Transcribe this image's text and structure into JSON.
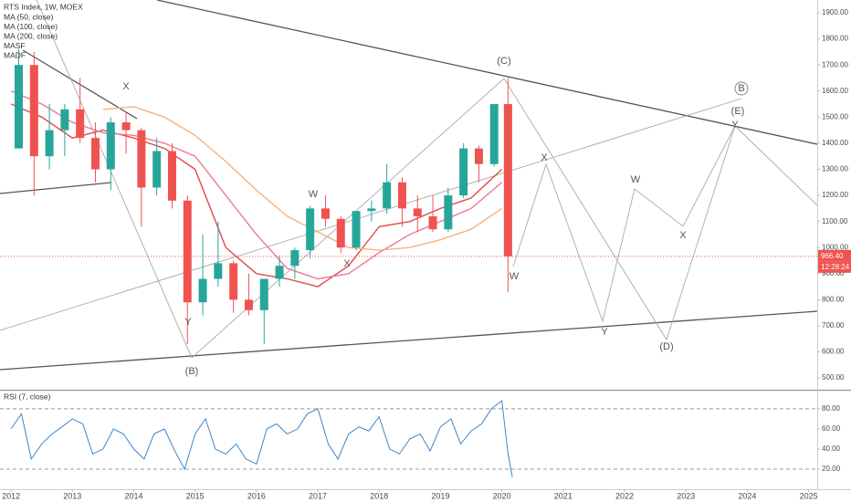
{
  "chart_data": [
    {
      "type": "candlestick",
      "title": "RTS Index, 1W, MOEX",
      "x": [
        2012.125,
        2012.375,
        2012.625,
        2012.875,
        2013.125,
        2013.375,
        2013.625,
        2013.875,
        2014.125,
        2014.375,
        2014.625,
        2014.875,
        2015.125,
        2015.375,
        2015.625,
        2015.875,
        2016.125,
        2016.375,
        2016.625,
        2016.875,
        2017.125,
        2017.375,
        2017.625,
        2017.875,
        2018.125,
        2018.375,
        2018.625,
        2018.875,
        2019.125,
        2019.375,
        2019.625,
        2019.875,
        2020.1
      ],
      "open": [
        1380,
        1700,
        1350,
        1450,
        1530,
        1420,
        1300,
        1480,
        1450,
        1230,
        1370,
        1180,
        790,
        880,
        940,
        800,
        760,
        880,
        930,
        990,
        1150,
        1110,
        1000,
        1140,
        1150,
        1250,
        1150,
        1120,
        1070,
        1200,
        1380,
        1320,
        1550
      ],
      "high": [
        1760,
        1750,
        1550,
        1550,
        1650,
        1480,
        1500,
        1520,
        1460,
        1420,
        1400,
        1200,
        1050,
        1100,
        950,
        900,
        880,
        970,
        1000,
        1160,
        1200,
        1120,
        1140,
        1180,
        1320,
        1270,
        1200,
        1200,
        1230,
        1400,
        1390,
        1550,
        1650
      ],
      "low": [
        1380,
        1200,
        1300,
        1350,
        1400,
        1250,
        1220,
        1360,
        1080,
        1200,
        1150,
        630,
        740,
        850,
        750,
        740,
        630,
        850,
        880,
        960,
        1080,
        980,
        990,
        1100,
        1130,
        1080,
        1060,
        1060,
        1060,
        1190,
        1250,
        1310,
        830
      ],
      "close": [
        1700,
        1350,
        1450,
        1530,
        1420,
        1300,
        1480,
        1450,
        1230,
        1370,
        1180,
        790,
        880,
        940,
        800,
        760,
        880,
        930,
        990,
        1150,
        1110,
        1000,
        1140,
        1150,
        1250,
        1150,
        1120,
        1070,
        1200,
        1380,
        1320,
        1550,
        966.4
      ],
      "up_color": "#26a69a",
      "down_color": "#ef5350",
      "lines": [
        {
          "name": "MA (50, close)",
          "color": "#e04a4a",
          "x": [
            2012,
            2012.5,
            2013,
            2013.5,
            2014,
            2014.5,
            2015,
            2015.5,
            2016,
            2016.5,
            2017,
            2017.5,
            2018,
            2018.5,
            2019,
            2019.5,
            2020
          ],
          "values": [
            1550,
            1500,
            1420,
            1450,
            1420,
            1380,
            1300,
            1000,
            900,
            880,
            850,
            930,
            1080,
            1100,
            1150,
            1190,
            1300
          ]
        },
        {
          "name": "MA (100, close)",
          "color": "#ec7b9a",
          "x": [
            2012,
            2012.5,
            2013,
            2013.5,
            2014,
            2014.5,
            2015,
            2015.5,
            2016,
            2016.5,
            2017,
            2017.5,
            2018,
            2018.5,
            2019,
            2019.5,
            2020
          ],
          "values": [
            1600,
            1550,
            1480,
            1440,
            1430,
            1400,
            1350,
            1200,
            1050,
            920,
            880,
            900,
            980,
            1050,
            1100,
            1150,
            1250
          ]
        },
        {
          "name": "MA (200, close)",
          "color": "#f7b27a",
          "x": [
            2012,
            2012.5,
            2013,
            2013.5,
            2014,
            2014.5,
            2015,
            2015.5,
            2016,
            2016.5,
            2017,
            2017.5,
            2018,
            2018.5,
            2019,
            2019.5,
            2020
          ],
          "values": [
            null,
            null,
            null,
            1530,
            1540,
            1500,
            1430,
            1330,
            1220,
            1120,
            1060,
            1000,
            990,
            1000,
            1030,
            1070,
            1150
          ]
        }
      ],
      "extra_legend": [
        "MASF",
        "MADF"
      ],
      "last_price": {
        "value": 966.4,
        "label": "966.40"
      },
      "countdown": "12:28:24",
      "wave_labels": [
        "X",
        "Y",
        "(B)",
        "W",
        "X",
        "(C)",
        "W",
        "X",
        "Y",
        "W",
        "X",
        "(D)",
        "(E)",
        "Y",
        "B"
      ],
      "xlim": [
        2011.82,
        2025.14
      ],
      "xticks": [
        2012,
        2013,
        2014,
        2015,
        2016,
        2017,
        2018,
        2019,
        2020,
        2021,
        2022,
        2023,
        2024,
        2025
      ],
      "ylim": [
        455,
        1949
      ],
      "yticks": [
        {
          "value": 500,
          "label": "500.00"
        },
        {
          "value": 600,
          "label": "600.00"
        },
        {
          "value": 700,
          "label": "700.00"
        },
        {
          "value": 800,
          "label": "800.00"
        },
        {
          "value": 900,
          "label": "900.00"
        },
        {
          "value": 1000,
          "label": "1000.00"
        },
        {
          "value": 1100,
          "label": "1100.00"
        },
        {
          "value": 1200,
          "label": "1200.00"
        },
        {
          "value": 1300,
          "label": "1300.00"
        },
        {
          "value": 1400,
          "label": "1400.00"
        },
        {
          "value": 1500,
          "label": "1500.00"
        },
        {
          "value": 1600,
          "label": "1600.00"
        },
        {
          "value": 1700,
          "label": "1700.00"
        },
        {
          "value": 1800,
          "label": "1800.00"
        },
        {
          "value": 1900,
          "label": "1900.00"
        }
      ]
    },
    {
      "type": "line",
      "title": "RSI (7, close)",
      "color": "#3d85c6",
      "x": [
        2012.0,
        2012.17,
        2012.33,
        2012.5,
        2012.67,
        2012.83,
        2013.0,
        2013.17,
        2013.33,
        2013.5,
        2013.67,
        2013.83,
        2014.0,
        2014.17,
        2014.33,
        2014.5,
        2014.67,
        2014.83,
        2015.0,
        2015.17,
        2015.33,
        2015.5,
        2015.67,
        2015.83,
        2016.0,
        2016.17,
        2016.33,
        2016.5,
        2016.67,
        2016.83,
        2017.0,
        2017.17,
        2017.33,
        2017.5,
        2017.67,
        2017.83,
        2018.0,
        2018.17,
        2018.33,
        2018.5,
        2018.67,
        2018.83,
        2019.0,
        2019.17,
        2019.33,
        2019.5,
        2019.67,
        2019.83,
        2020.0,
        2020.1,
        2020.17
      ],
      "values": [
        60,
        75,
        30,
        45,
        55,
        62,
        70,
        65,
        35,
        40,
        60,
        55,
        40,
        30,
        55,
        60,
        38,
        20,
        55,
        70,
        40,
        35,
        45,
        30,
        25,
        60,
        65,
        55,
        60,
        75,
        80,
        45,
        30,
        55,
        62,
        58,
        72,
        40,
        35,
        50,
        55,
        38,
        62,
        70,
        45,
        58,
        65,
        80,
        88,
        35,
        12
      ],
      "ylim": [
        0,
        98
      ],
      "yticks": [
        {
          "value": 20,
          "label": "20.00"
        },
        {
          "value": 40,
          "label": "40.00"
        },
        {
          "value": 60,
          "label": "60.00"
        },
        {
          "value": 80,
          "label": "80.00"
        }
      ]
    }
  ]
}
